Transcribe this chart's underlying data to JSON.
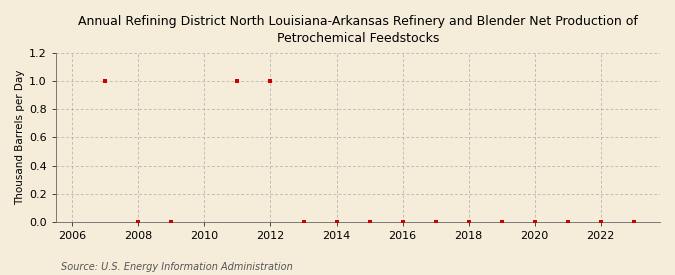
{
  "title_line1": "Annual Refining District North Louisiana-Arkansas Refinery and Blender Net Production of",
  "title_line2": "Petrochemical Feedstocks",
  "ylabel": "Thousand Barrels per Day",
  "source": "Source: U.S. Energy Information Administration",
  "xlim": [
    2005.5,
    2023.8
  ],
  "ylim": [
    0.0,
    1.2
  ],
  "yticks": [
    0.0,
    0.2,
    0.4,
    0.6,
    0.8,
    1.0,
    1.2
  ],
  "xticks": [
    2006,
    2008,
    2010,
    2012,
    2014,
    2016,
    2018,
    2020,
    2022
  ],
  "background_color": "#f5edda",
  "plot_bg_color": "#f5edda",
  "grid_color": "#aaaaaa",
  "marker_color": "#cc0000",
  "data_x": [
    2007,
    2008,
    2009,
    2011,
    2012,
    2013,
    2014,
    2015,
    2016,
    2017,
    2018,
    2019,
    2020,
    2021,
    2022,
    2023
  ],
  "data_y": [
    1.0,
    0.0,
    0.0,
    1.0,
    1.0,
    0.0,
    0.0,
    0.0,
    0.0,
    0.0,
    0.0,
    0.0,
    0.0,
    0.0,
    0.0,
    0.0
  ],
  "title_fontsize": 9,
  "tick_fontsize": 8,
  "ylabel_fontsize": 7.5,
  "source_fontsize": 7
}
